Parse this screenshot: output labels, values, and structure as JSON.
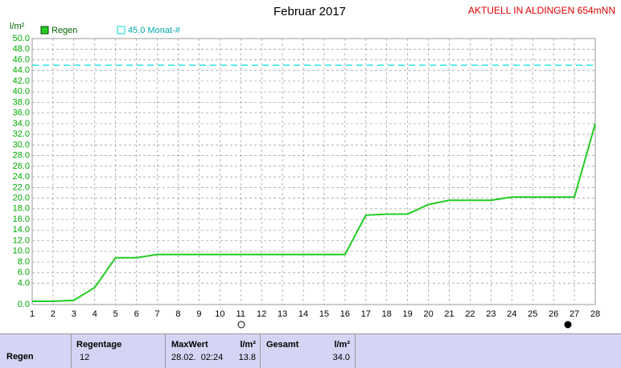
{
  "chart_data": {
    "type": "line",
    "title": "Februar 2017",
    "subtitle": "AKTUELL IN ALDINGEN 654mNN",
    "y_label": "l/m²",
    "x": [
      1,
      2,
      3,
      4,
      5,
      6,
      7,
      8,
      9,
      10,
      11,
      12,
      13,
      14,
      15,
      16,
      17,
      18,
      19,
      20,
      21,
      22,
      23,
      24,
      25,
      26,
      27,
      28
    ],
    "series": [
      {
        "name": "Regen",
        "color": "#22cc22",
        "values": [
          0.6,
          0.6,
          0.8,
          3.2,
          8.8,
          8.8,
          9.4,
          9.4,
          9.4,
          9.4,
          9.4,
          9.4,
          9.4,
          9.4,
          9.4,
          9.4,
          16.8,
          17.0,
          17.0,
          18.8,
          19.6,
          19.6,
          19.6,
          20.2,
          20.2,
          20.2,
          20.2,
          34.0
        ]
      }
    ],
    "reference": {
      "label": "45.0 Monat-#",
      "value": 45,
      "color": "#00dddd"
    },
    "xlim": [
      1,
      28
    ],
    "xticks": [
      1,
      2,
      3,
      4,
      5,
      6,
      7,
      8,
      9,
      10,
      11,
      12,
      13,
      14,
      15,
      16,
      17,
      18,
      19,
      20,
      21,
      22,
      23,
      24,
      25,
      26,
      27,
      28
    ],
    "ylim": [
      0,
      50
    ],
    "yticks": [
      {
        "value": 0,
        "label": "0.0"
      },
      {
        "value": 4,
        "label": "4.0"
      },
      {
        "value": 6,
        "label": "6.0"
      },
      {
        "value": 8,
        "label": "8.0"
      },
      {
        "value": 10,
        "label": "10.0"
      },
      {
        "value": 12,
        "label": "12.0"
      },
      {
        "value": 14,
        "label": "14.0"
      },
      {
        "value": 16,
        "label": "16.0"
      },
      {
        "value": 18,
        "label": "18.0"
      },
      {
        "value": 20,
        "label": "20.0"
      },
      {
        "value": 22,
        "label": "22.0"
      },
      {
        "value": 24,
        "label": "24.0"
      },
      {
        "value": 26,
        "label": "26.0"
      },
      {
        "value": 28,
        "label": "28.0"
      },
      {
        "value": 30,
        "label": "30.0"
      },
      {
        "value": 32,
        "label": "32.0"
      },
      {
        "value": 34,
        "label": "34.0"
      },
      {
        "value": 36,
        "label": "36.0"
      },
      {
        "value": 38,
        "label": "38.0"
      },
      {
        "value": 40,
        "label": "40.0"
      },
      {
        "value": 42,
        "label": "42.0"
      },
      {
        "value": 44,
        "label": "44.0"
      },
      {
        "value": 46,
        "label": "46.0"
      },
      {
        "value": 48,
        "label": "48.0"
      },
      {
        "value": 50,
        "label": "50.0"
      }
    ],
    "grid": true
  },
  "table": {
    "row_label": "Regen",
    "cells": [
      {
        "header": "Regentage",
        "value": "12"
      },
      {
        "header": "MaxWert",
        "value": "28.02.  02:24",
        "unit": "l/m²",
        "amount": "13.8"
      },
      {
        "header": "Gesamt",
        "unit": "l/m²",
        "amount": "34.0"
      }
    ]
  }
}
